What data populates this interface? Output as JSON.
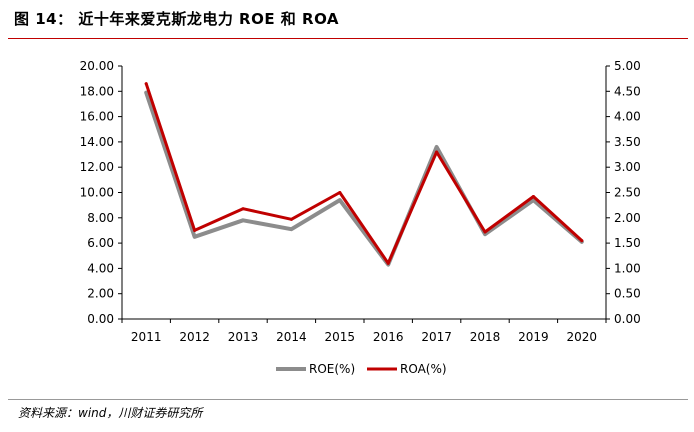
{
  "figure_title": "图 14：  近十年来爱克斯龙电力 ROE 和 ROA",
  "source": "资料来源：wind，川财证券研究所",
  "chart_data": {
    "type": "line",
    "title": "",
    "xlabel": "",
    "categories": [
      "2011",
      "2012",
      "2013",
      "2014",
      "2015",
      "2016",
      "2017",
      "2018",
      "2019",
      "2020"
    ],
    "y_left": {
      "min": 0,
      "max": 20,
      "step": 2,
      "decimals": 2,
      "label": ""
    },
    "y_right": {
      "min": 0,
      "max": 5,
      "step": 0.5,
      "decimals": 2,
      "label": ""
    },
    "grid": false,
    "legend_position": "bottom",
    "series": [
      {
        "name": "ROE(%)",
        "axis": "left",
        "color": "#8c8c8c",
        "values": [
          17.9,
          6.5,
          7.8,
          7.1,
          9.4,
          4.3,
          13.6,
          6.7,
          9.4,
          6.1
        ]
      },
      {
        "name": "ROA(%)",
        "axis": "right",
        "color": "#c00000",
        "values": [
          4.65,
          1.75,
          2.18,
          1.97,
          2.5,
          1.1,
          3.3,
          1.72,
          2.42,
          1.55
        ]
      }
    ]
  }
}
